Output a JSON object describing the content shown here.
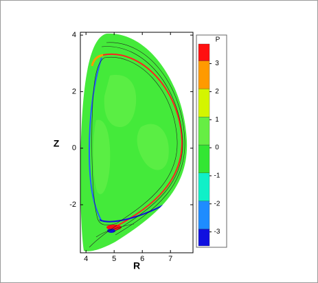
{
  "chart_data": {
    "type": "contour",
    "x_label": "R",
    "y_label": "Z",
    "xlim": [
      3.8,
      7.8
    ],
    "xticks": [
      4,
      5,
      6,
      7
    ],
    "ylim": [
      -3.7,
      4.1
    ],
    "yticks": [
      -2,
      0,
      2,
      4
    ],
    "colorbar": {
      "title": "P",
      "levels": [
        -3.5,
        -2.9,
        -1.9,
        -0.9,
        0.1,
        1.1,
        2.1,
        3.1,
        3.7
      ],
      "colors": [
        "#1010e0",
        "#1e8cff",
        "#10f0c8",
        "#33e633",
        "#66ee44",
        "#d4f500",
        "#ff9a00",
        "#ff1010"
      ],
      "ticks": [
        -3,
        -2,
        -1,
        0,
        1,
        2,
        3
      ]
    }
  }
}
